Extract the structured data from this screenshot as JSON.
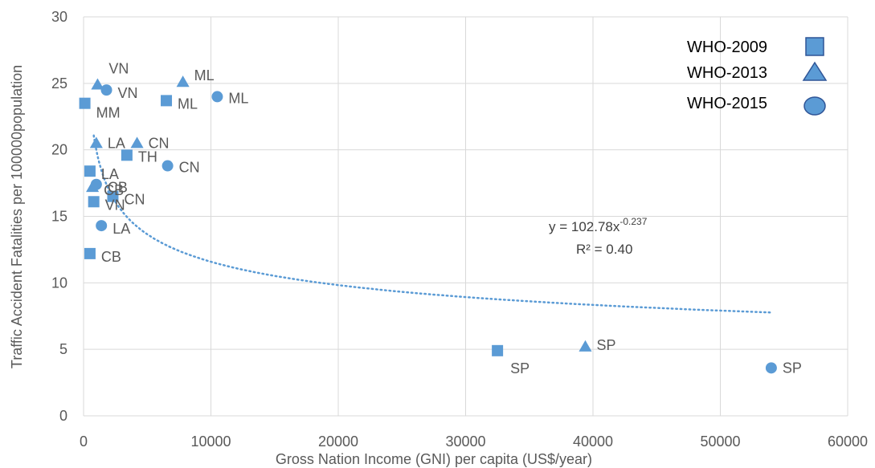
{
  "chart_data": {
    "type": "scatter",
    "xlabel": "Gross Nation Income (GNI) per capita (US$/year)",
    "ylabel": "Traffic Accident Fatalities per 100000population",
    "xlim": [
      0,
      60000
    ],
    "ylim": [
      0,
      30
    ],
    "x_ticks": [
      0,
      10000,
      20000,
      30000,
      40000,
      50000,
      60000
    ],
    "y_ticks": [
      0,
      5,
      10,
      15,
      20,
      25,
      30
    ],
    "grid": true,
    "legend_position": "top-right",
    "marker_color": "#5B9BD5",
    "series": [
      {
        "name": "WHO-2009",
        "marker": "square",
        "points": [
          {
            "label": "MM",
            "x": 100,
            "y": 23.5
          },
          {
            "label": "ML",
            "x": 6500,
            "y": 23.7
          },
          {
            "label": "TH",
            "x": 3400,
            "y": 19.6
          },
          {
            "label": "LA",
            "x": 500,
            "y": 18.4
          },
          {
            "label": "CN",
            "x": 2300,
            "y": 16.5
          },
          {
            "label": "VN",
            "x": 800,
            "y": 16.1
          },
          {
            "label": "CB",
            "x": 500,
            "y": 12.2
          },
          {
            "label": "SP",
            "x": 32500,
            "y": 4.9
          }
        ]
      },
      {
        "name": "WHO-2013",
        "marker": "triangle",
        "points": [
          {
            "label": "VN",
            "x": 1100,
            "y": 24.9
          },
          {
            "label": "ML",
            "x": 7800,
            "y": 25.1
          },
          {
            "label": "LA",
            "x": 1000,
            "y": 20.5
          },
          {
            "label": "CN",
            "x": 4200,
            "y": 20.5
          },
          {
            "label": "CB",
            "x": 700,
            "y": 17.2
          },
          {
            "label": "SP",
            "x": 39400,
            "y": 5.2
          }
        ]
      },
      {
        "name": "WHO-2015",
        "marker": "circle",
        "points": [
          {
            "label": "VN",
            "x": 1800,
            "y": 24.5
          },
          {
            "label": "ML",
            "x": 10500,
            "y": 24.0
          },
          {
            "label": "CN",
            "x": 6600,
            "y": 18.8
          },
          {
            "label": "CB",
            "x": 1000,
            "y": 17.4
          },
          {
            "label": "LA",
            "x": 1400,
            "y": 14.3
          },
          {
            "label": "SP",
            "x": 54000,
            "y": 3.6
          }
        ]
      }
    ],
    "trendline": {
      "type": "power",
      "a": 102.78,
      "b": -0.237,
      "x_range": [
        800,
        54000
      ],
      "equation_prefix": "y = 102.78x",
      "equation_exponent": "-0.237",
      "r_squared_text": "R² = 0.40"
    }
  }
}
